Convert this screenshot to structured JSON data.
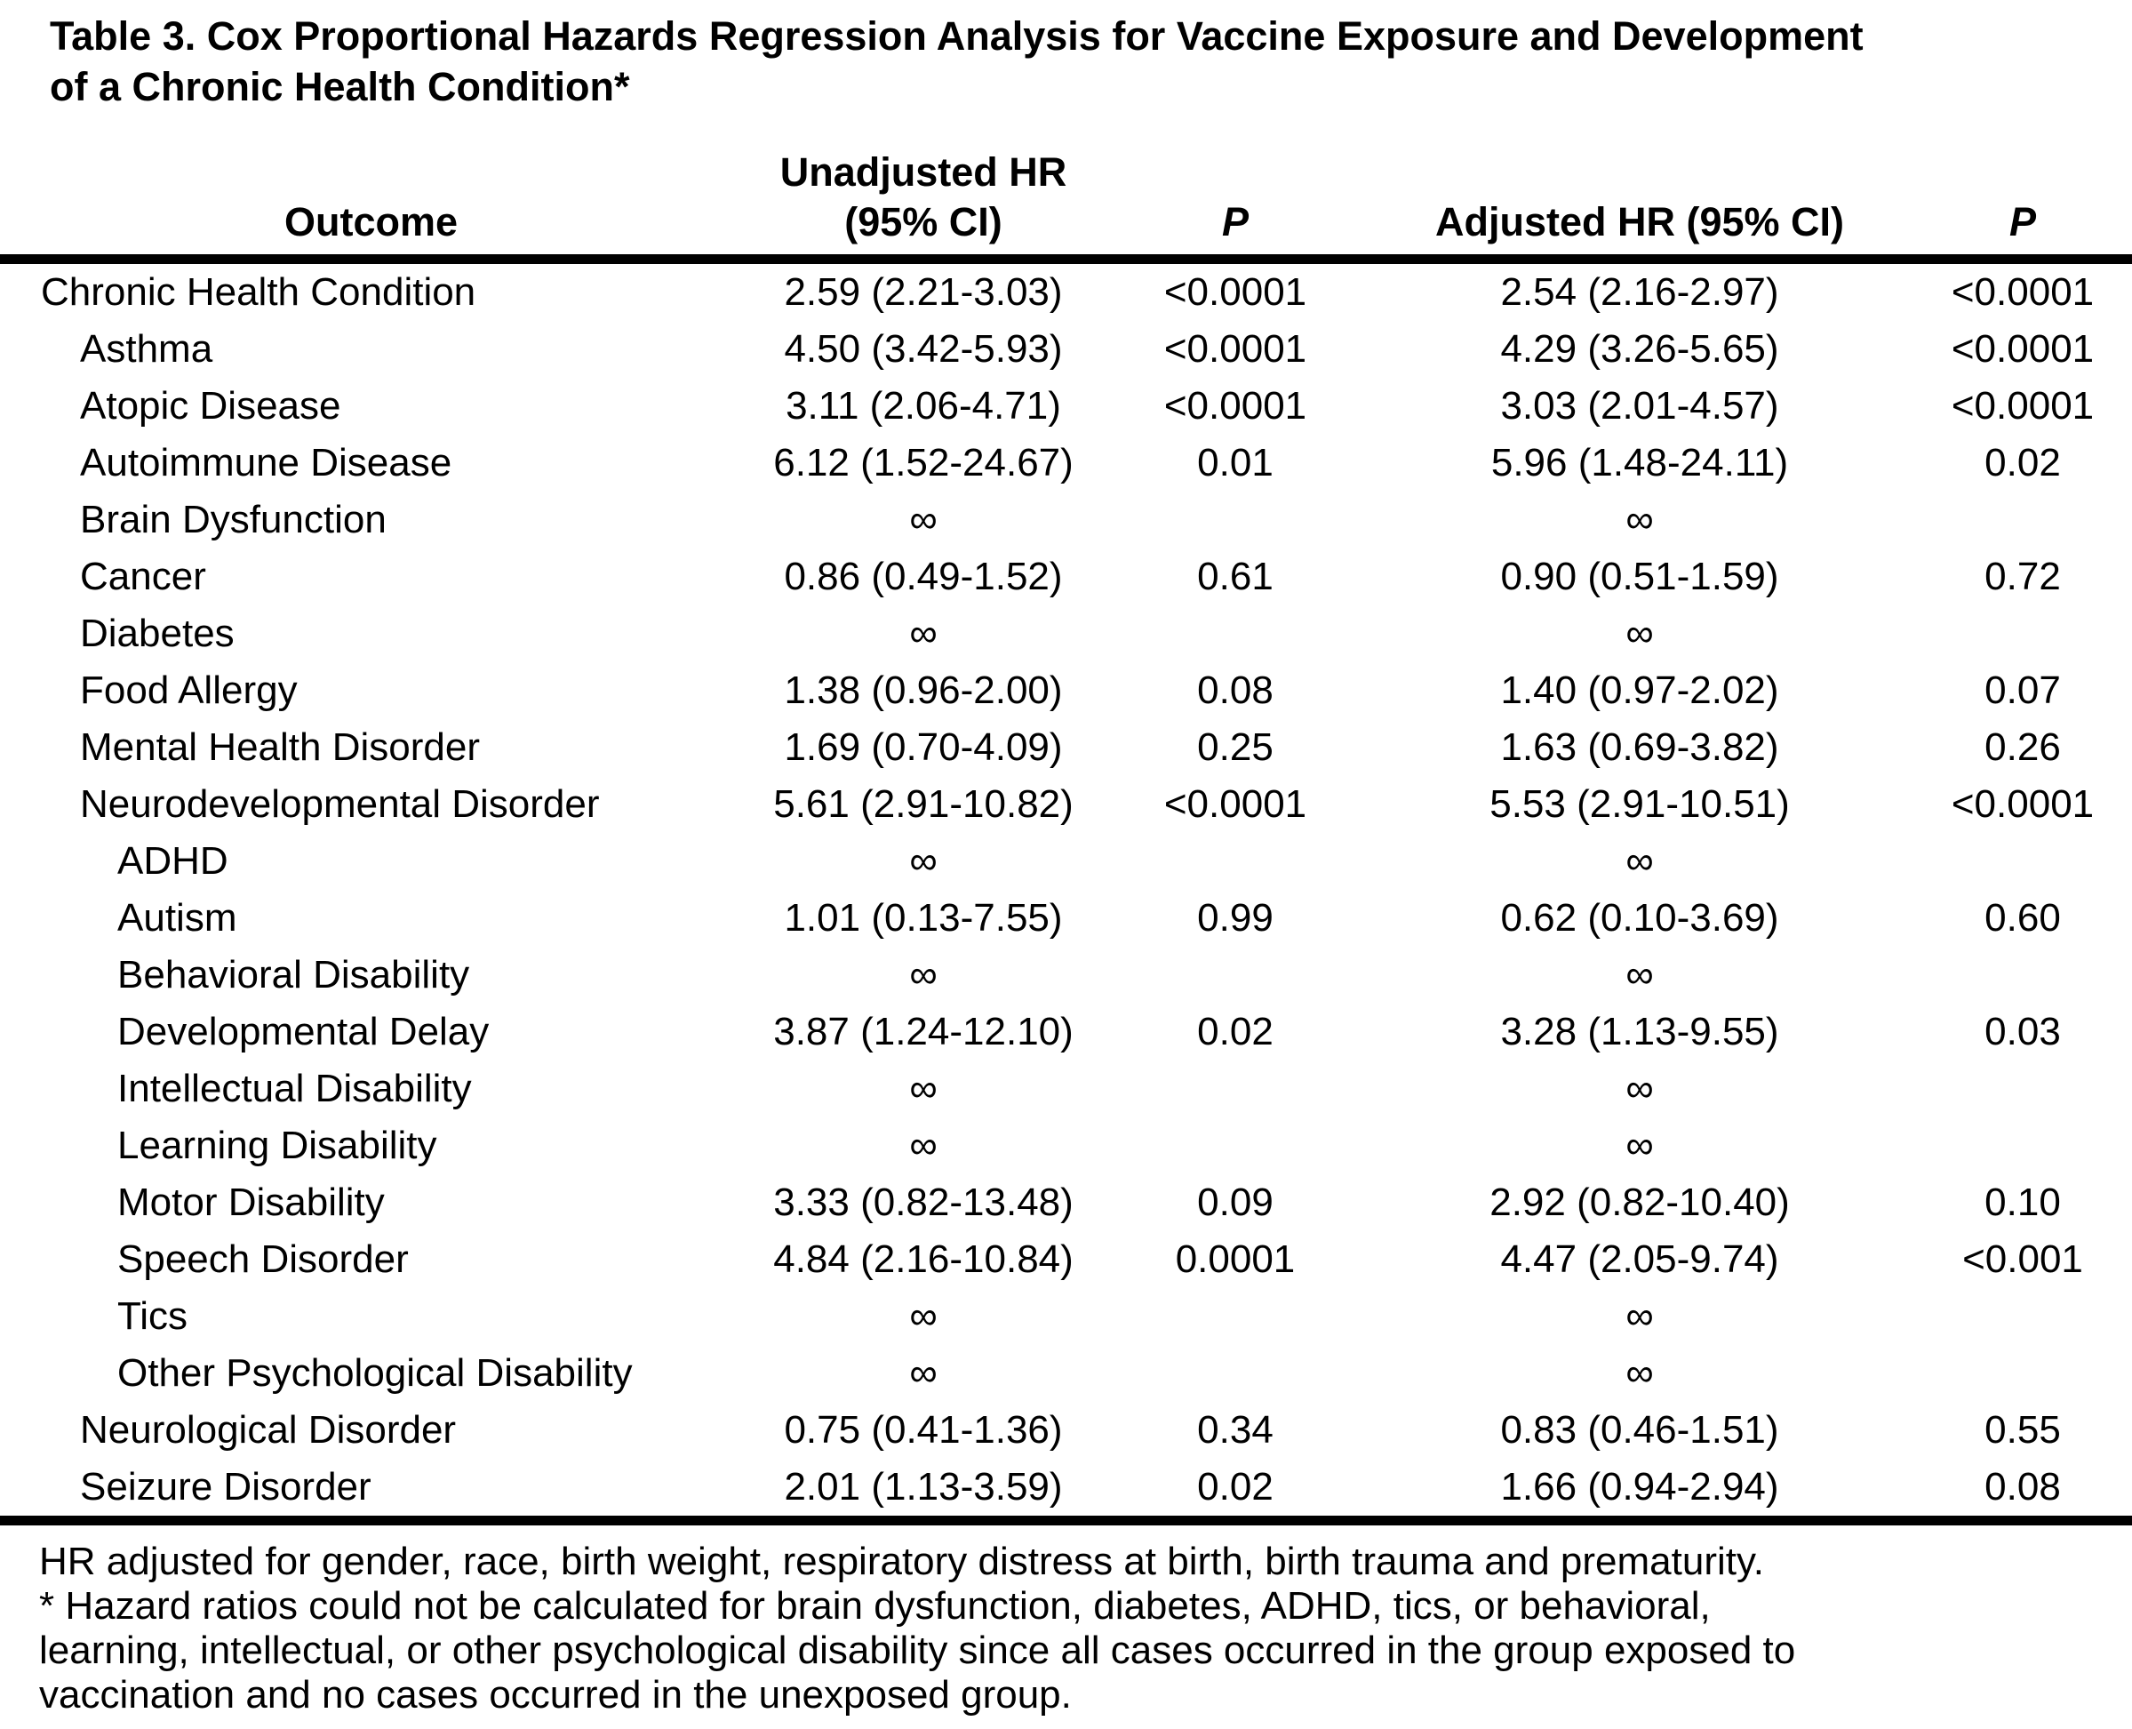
{
  "page": {
    "title_lines": [
      "Table 3. Cox Proportional Hazards Regression Analysis for Vaccine Exposure and Development",
      "of a Chronic Health Condition*"
    ]
  },
  "colors": {
    "text": "#000000",
    "background": "#ffffff",
    "rule": "#000000"
  },
  "table": {
    "headers": {
      "outcome": "Outcome",
      "unadjusted_hr_line1": "Unadjusted HR",
      "unadjusted_hr_line2": "(95% CI)",
      "p_unadjusted": "P",
      "adjusted_hr": "Adjusted HR (95% CI)",
      "p_adjusted": "P"
    },
    "infinity_symbol": "∞",
    "rows": [
      {
        "outcome": "Chronic Health Condition",
        "indent": 0,
        "unadjusted_hr": "2.59 (2.21-3.03)",
        "p_unadjusted": "<0.0001",
        "adjusted_hr": "2.54 (2.16-2.97)",
        "p_adjusted": "<0.0001"
      },
      {
        "outcome": "Asthma",
        "indent": 1,
        "unadjusted_hr": "4.50 (3.42-5.93)",
        "p_unadjusted": "<0.0001",
        "adjusted_hr": "4.29 (3.26-5.65)",
        "p_adjusted": "<0.0001"
      },
      {
        "outcome": "Atopic Disease",
        "indent": 1,
        "unadjusted_hr": "3.11 (2.06-4.71)",
        "p_unadjusted": "<0.0001",
        "adjusted_hr": "3.03 (2.01-4.57)",
        "p_adjusted": "<0.0001"
      },
      {
        "outcome": "Autoimmune Disease",
        "indent": 1,
        "unadjusted_hr": "6.12 (1.52-24.67)",
        "p_unadjusted": "0.01",
        "adjusted_hr": "5.96 (1.48-24.11)",
        "p_adjusted": "0.02"
      },
      {
        "outcome": "Brain Dysfunction",
        "indent": 1,
        "unadjusted_hr": "∞",
        "p_unadjusted": "",
        "adjusted_hr": "∞",
        "p_adjusted": ""
      },
      {
        "outcome": "Cancer",
        "indent": 1,
        "unadjusted_hr": "0.86 (0.49-1.52)",
        "p_unadjusted": "0.61",
        "adjusted_hr": "0.90 (0.51-1.59)",
        "p_adjusted": "0.72"
      },
      {
        "outcome": "Diabetes",
        "indent": 1,
        "unadjusted_hr": "∞",
        "p_unadjusted": "",
        "adjusted_hr": "∞",
        "p_adjusted": ""
      },
      {
        "outcome": "Food Allergy",
        "indent": 1,
        "unadjusted_hr": "1.38 (0.96-2.00)",
        "p_unadjusted": "0.08",
        "adjusted_hr": "1.40 (0.97-2.02)",
        "p_adjusted": "0.07"
      },
      {
        "outcome": "Mental Health Disorder",
        "indent": 1,
        "unadjusted_hr": "1.69 (0.70-4.09)",
        "p_unadjusted": "0.25",
        "adjusted_hr": "1.63 (0.69-3.82)",
        "p_adjusted": "0.26"
      },
      {
        "outcome": "Neurodevelopmental Disorder",
        "indent": 1,
        "unadjusted_hr": "5.61 (2.91-10.82)",
        "p_unadjusted": "<0.0001",
        "adjusted_hr": "5.53 (2.91-10.51)",
        "p_adjusted": "<0.0001"
      },
      {
        "outcome": "ADHD",
        "indent": 2,
        "unadjusted_hr": "∞",
        "p_unadjusted": "",
        "adjusted_hr": "∞",
        "p_adjusted": ""
      },
      {
        "outcome": "Autism",
        "indent": 2,
        "unadjusted_hr": "1.01 (0.13-7.55)",
        "p_unadjusted": "0.99",
        "adjusted_hr": "0.62 (0.10-3.69)",
        "p_adjusted": "0.60"
      },
      {
        "outcome": "Behavioral Disability",
        "indent": 2,
        "unadjusted_hr": "∞",
        "p_unadjusted": "",
        "adjusted_hr": "∞",
        "p_adjusted": ""
      },
      {
        "outcome": "Developmental Delay",
        "indent": 2,
        "unadjusted_hr": "3.87 (1.24-12.10)",
        "p_unadjusted": "0.02",
        "adjusted_hr": "3.28 (1.13-9.55)",
        "p_adjusted": "0.03"
      },
      {
        "outcome": "Intellectual Disability",
        "indent": 2,
        "unadjusted_hr": "∞",
        "p_unadjusted": "",
        "adjusted_hr": "∞",
        "p_adjusted": ""
      },
      {
        "outcome": "Learning Disability",
        "indent": 2,
        "unadjusted_hr": "∞",
        "p_unadjusted": "",
        "adjusted_hr": "∞",
        "p_adjusted": ""
      },
      {
        "outcome": "Motor Disability",
        "indent": 2,
        "unadjusted_hr": "3.33 (0.82-13.48)",
        "p_unadjusted": "0.09",
        "adjusted_hr": "2.92 (0.82-10.40)",
        "p_adjusted": "0.10"
      },
      {
        "outcome": "Speech Disorder",
        "indent": 2,
        "unadjusted_hr": "4.84 (2.16-10.84)",
        "p_unadjusted": "0.0001",
        "adjusted_hr": "4.47 (2.05-9.74)",
        "p_adjusted": "<0.001"
      },
      {
        "outcome": "Tics",
        "indent": 2,
        "unadjusted_hr": "∞",
        "p_unadjusted": "",
        "adjusted_hr": "∞",
        "p_adjusted": ""
      },
      {
        "outcome": "Other Psychological Disability",
        "indent": 2,
        "unadjusted_hr": "∞",
        "p_unadjusted": "",
        "adjusted_hr": "∞",
        "p_adjusted": ""
      },
      {
        "outcome": "Neurological Disorder",
        "indent": 1,
        "unadjusted_hr": "0.75 (0.41-1.36)",
        "p_unadjusted": "0.34",
        "adjusted_hr": "0.83 (0.46-1.51)",
        "p_adjusted": "0.55"
      },
      {
        "outcome": "Seizure Disorder",
        "indent": 1,
        "unadjusted_hr": "2.01 (1.13-3.59)",
        "p_unadjusted": "0.02",
        "adjusted_hr": "1.66 (0.94-2.94)",
        "p_adjusted": "0.08"
      }
    ]
  },
  "footnotes": {
    "lines": [
      "HR adjusted for gender, race, birth weight, respiratory distress at birth, birth trauma and prematurity.",
      "* Hazard ratios could not be calculated for brain dysfunction, diabetes, ADHD, tics, or behavioral,",
      "learning, intellectual, or other psychological disability since all cases occurred in the group exposed to",
      "vaccination and no cases occurred in the unexposed group."
    ]
  }
}
